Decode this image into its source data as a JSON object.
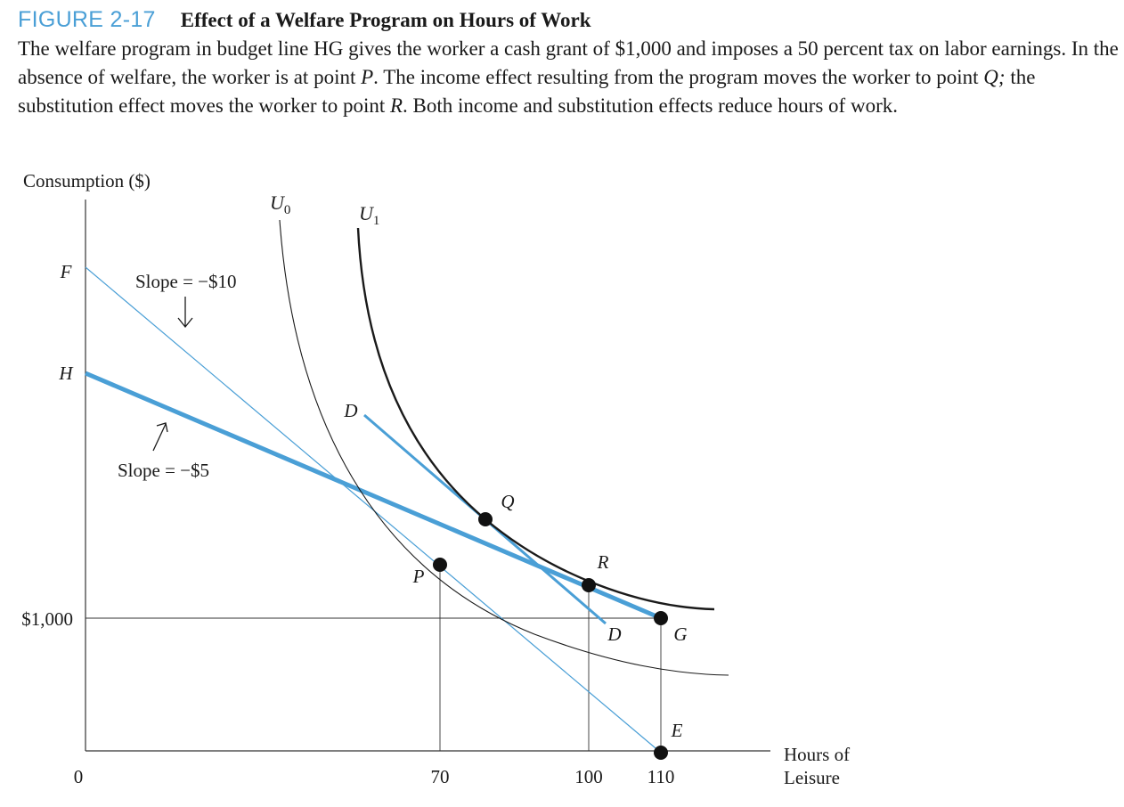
{
  "figure": {
    "number": "FIGURE 2-17",
    "title": "Effect of a Welfare Program on Hours of Work",
    "caption_parts": [
      {
        "t": "The welfare program in budget line HG gives the worker a cash grant of $1,000 and imposes a 50 percent tax on labor earnings. In the absence of welfare, the worker is at point "
      },
      {
        "t": "P",
        "i": true
      },
      {
        "t": ". The income effect resulting from the program moves the worker to point "
      },
      {
        "t": "Q;",
        "i": true
      },
      {
        "t": " the substitution effect moves the worker to point "
      },
      {
        "t": "R",
        "i": true
      },
      {
        "t": ". Both income and substitution effects reduce hours of work."
      }
    ]
  },
  "chart_data": {
    "type": "line",
    "ylabel": "Consumption ($)",
    "xlabel_lines": [
      "Hours of",
      "Leisure"
    ],
    "origin_label": "0",
    "x_ticks": [
      {
        "value": 70,
        "label": "70"
      },
      {
        "value": 100,
        "label": "100"
      },
      {
        "value": 110,
        "label": "110"
      }
    ],
    "y_ticks": [
      {
        "value": 1000,
        "label": "$1,000"
      }
    ],
    "y_axis_letters": [
      {
        "key": "F",
        "label": "F"
      },
      {
        "key": "H",
        "label": "H"
      }
    ],
    "budget_lines": [
      {
        "name": "FE",
        "slope_label": "Slope = −$10"
      },
      {
        "name": "HG",
        "slope_label": "Slope = −$5"
      }
    ],
    "indifference_curves": [
      {
        "label": "U",
        "sub": "0"
      },
      {
        "label": "U",
        "sub": "1"
      }
    ],
    "points": [
      {
        "label": "P",
        "x": 70
      },
      {
        "label": "Q",
        "x": 80
      },
      {
        "label": "R",
        "x": 100
      },
      {
        "label": "G",
        "x": 110,
        "y": 1000
      },
      {
        "label": "E",
        "x": 110,
        "y": 0
      }
    ],
    "tangent_label": "D",
    "colors": {
      "blue": "#4a9fd6",
      "black": "#1a1a1a",
      "axis": "#333333"
    }
  }
}
